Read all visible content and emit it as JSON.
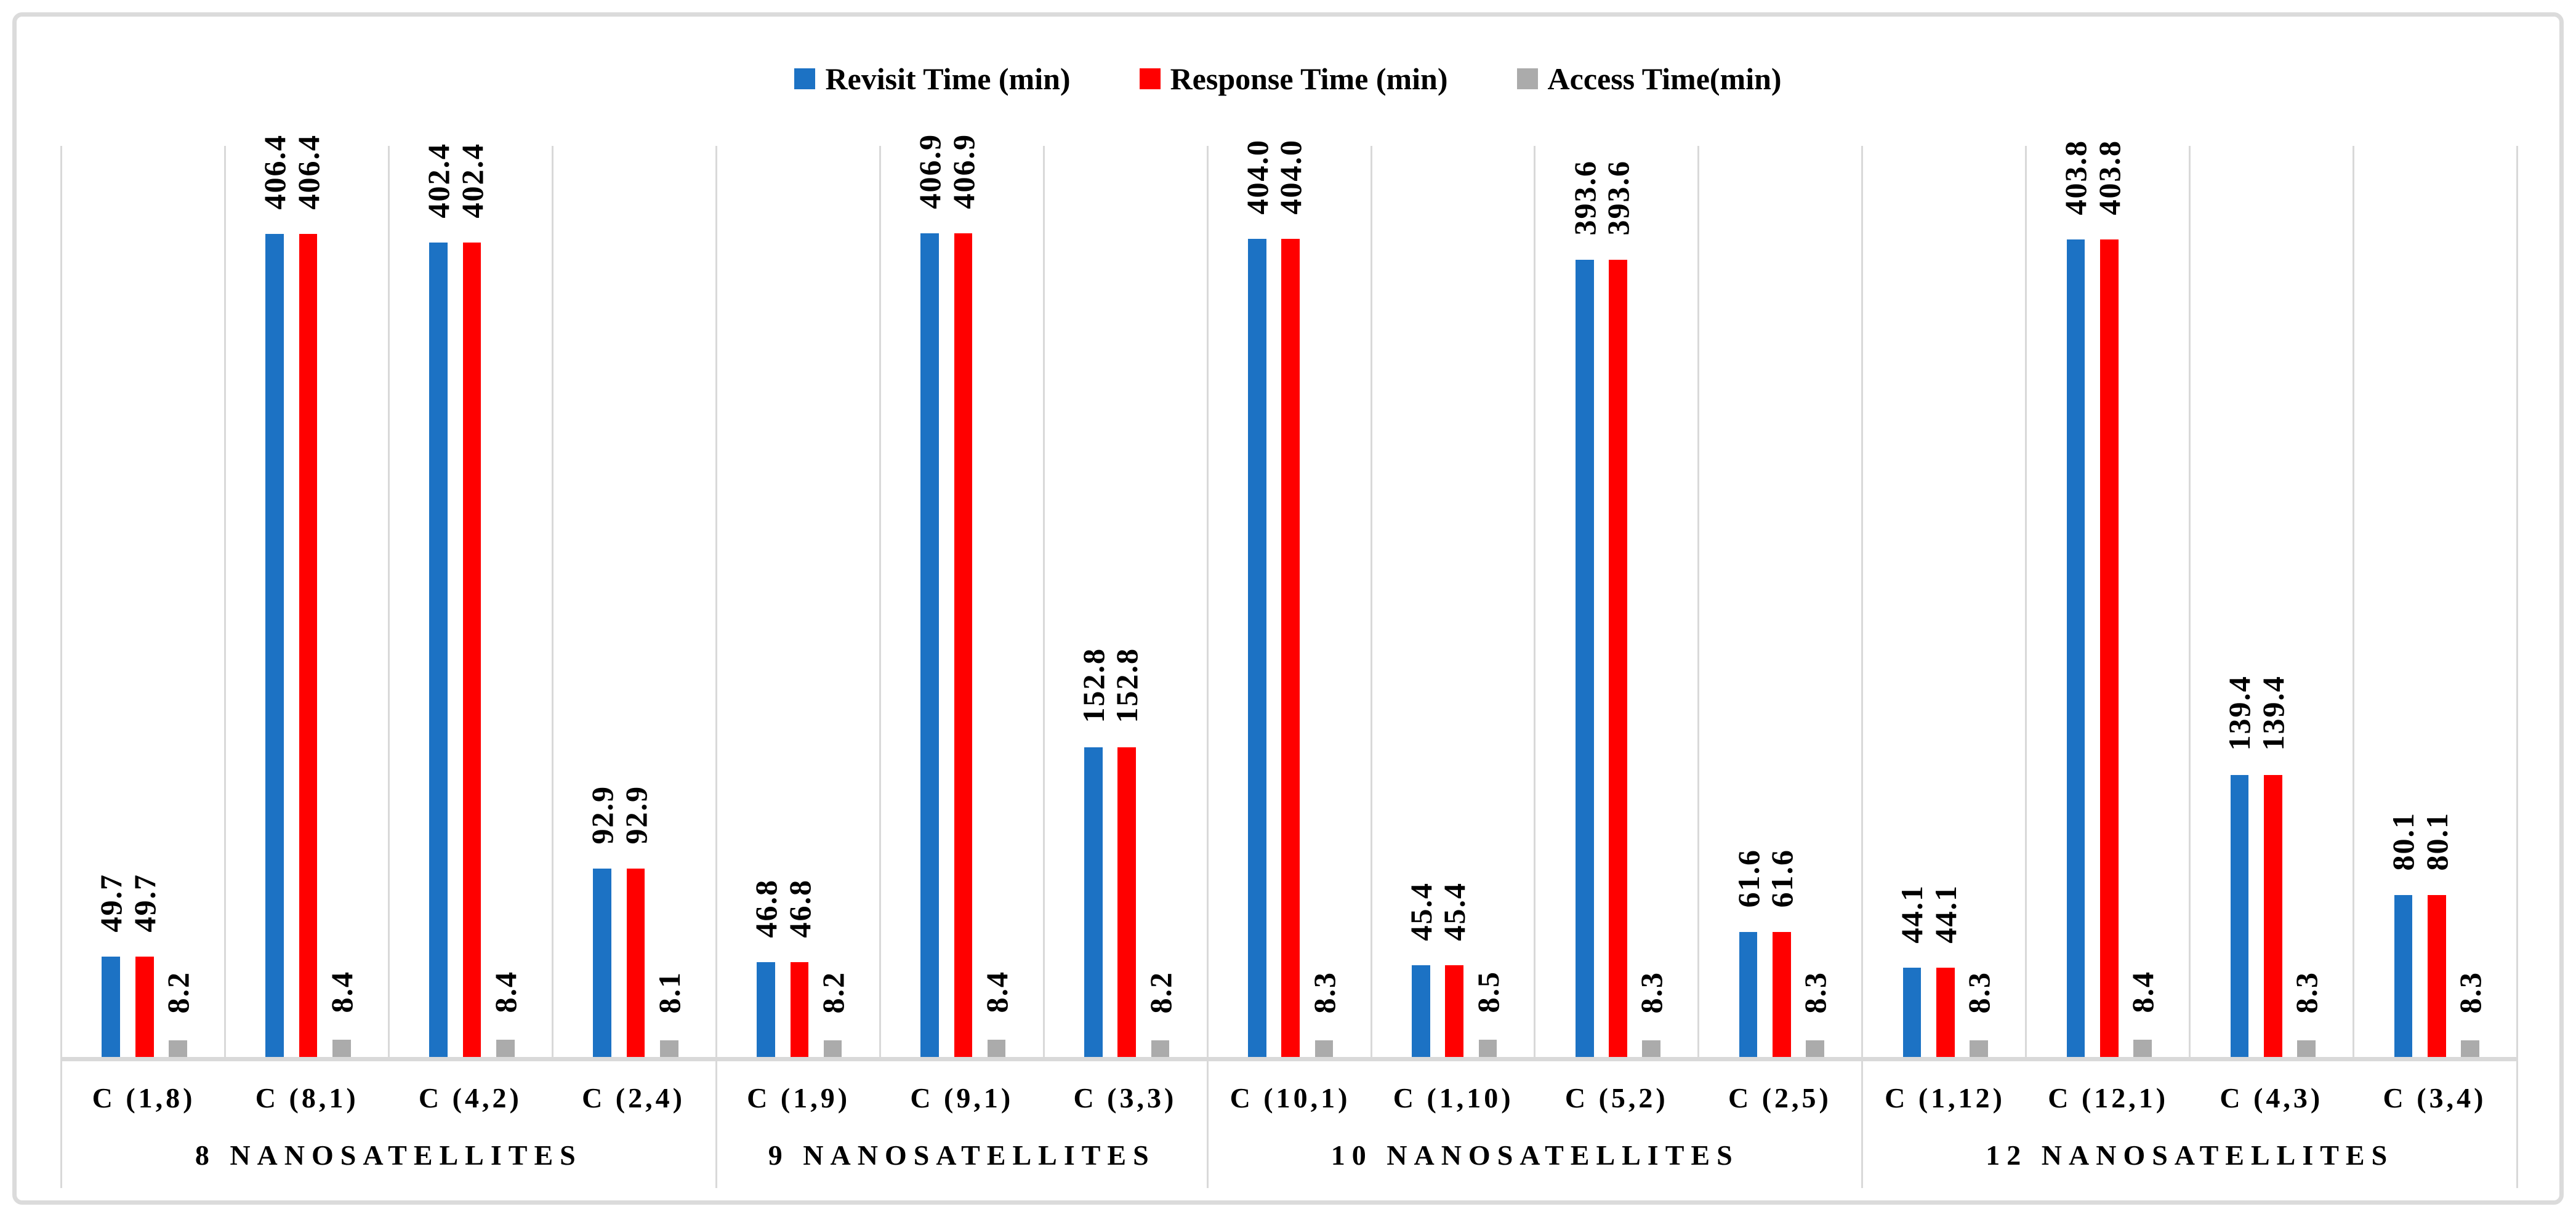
{
  "colors": {
    "revisit": "#1C72C4",
    "response": "#FF0000",
    "access": "#ABABAB",
    "gridline": "#D9D9D9",
    "axis": "#D9D9D9",
    "border": "#DBDBDB",
    "text": "#000000"
  },
  "legend": {
    "items": [
      {
        "label": "Revisit Time (min)",
        "color_key": "revisit"
      },
      {
        "label": "Response Time (min)",
        "color_key": "response"
      },
      {
        "label": "Access Time(min)",
        "color_key": "access"
      }
    ]
  },
  "chart_data": {
    "type": "bar",
    "title": "",
    "xlabel": "",
    "ylabel": "",
    "ylim": [
      0,
      450
    ],
    "y_axis_visible": false,
    "grid": "vertical category separators only, light gray",
    "legend_position": "top-center",
    "value_labels": "rotated 90deg, bold, above bars, one decimal",
    "series_names": [
      "Revisit Time (min)",
      "Response Time (min)",
      "Access Time(min)"
    ],
    "groups": [
      {
        "label": "8 NANOSATELLITES",
        "categories": [
          {
            "label": "C (1,8)",
            "values": [
              49.7,
              49.7,
              8.2
            ],
            "display": [
              "49.7",
              "49.7",
              "8.2"
            ]
          },
          {
            "label": "C (8,1)",
            "values": [
              406.4,
              406.4,
              8.4
            ],
            "display": [
              "406.4",
              "406.4",
              "8.4"
            ]
          },
          {
            "label": "C (4,2)",
            "values": [
              402.4,
              402.4,
              8.4
            ],
            "display": [
              "402.4",
              "402.4",
              "8.4"
            ]
          },
          {
            "label": "C (2,4)",
            "values": [
              92.9,
              92.9,
              8.1
            ],
            "display": [
              "92.9",
              "92.9",
              "8.1"
            ]
          }
        ]
      },
      {
        "label": "9 NANOSATELLITES",
        "categories": [
          {
            "label": "C (1,9)",
            "values": [
              46.8,
              46.8,
              8.2
            ],
            "display": [
              "46.8",
              "46.8",
              "8.2"
            ]
          },
          {
            "label": "C (9,1)",
            "values": [
              406.9,
              406.9,
              8.4
            ],
            "display": [
              "406.9",
              "406.9",
              "8.4"
            ]
          },
          {
            "label": "C (3,3)",
            "values": [
              152.8,
              152.8,
              8.2
            ],
            "display": [
              "152.8",
              "152.8",
              "8.2"
            ]
          }
        ]
      },
      {
        "label": "10 NANOSATELLITES",
        "categories": [
          {
            "label": "C (10,1)",
            "values": [
              404.0,
              404.0,
              8.3
            ],
            "display": [
              "404.0",
              "404.0",
              "8.3"
            ]
          },
          {
            "label": "C (1,10)",
            "values": [
              45.4,
              45.4,
              8.5
            ],
            "display": [
              "45.4",
              "45.4",
              "8.5"
            ]
          },
          {
            "label": "C (5,2)",
            "values": [
              393.6,
              393.6,
              8.3
            ],
            "display": [
              "393.6",
              "393.6",
              "8.3"
            ]
          },
          {
            "label": "C (2,5)",
            "values": [
              61.6,
              61.6,
              8.3
            ],
            "display": [
              "61.6",
              "61.6",
              "8.3"
            ]
          }
        ]
      },
      {
        "label": "12 NANOSATELLITES",
        "categories": [
          {
            "label": "C (1,12)",
            "values": [
              44.1,
              44.1,
              8.3
            ],
            "display": [
              "44.1",
              "44.1",
              "8.3"
            ]
          },
          {
            "label": "C (12,1)",
            "values": [
              403.8,
              403.8,
              8.4
            ],
            "display": [
              "403.8",
              "403.8",
              "8.4"
            ]
          },
          {
            "label": "C (4,3)",
            "values": [
              139.4,
              139.4,
              8.3
            ],
            "display": [
              "139.4",
              "139.4",
              "8.3"
            ]
          },
          {
            "label": "C (3,4)",
            "values": [
              80.1,
              80.1,
              8.3
            ],
            "display": [
              "80.1",
              "80.1",
              "8.3"
            ]
          }
        ]
      }
    ]
  }
}
